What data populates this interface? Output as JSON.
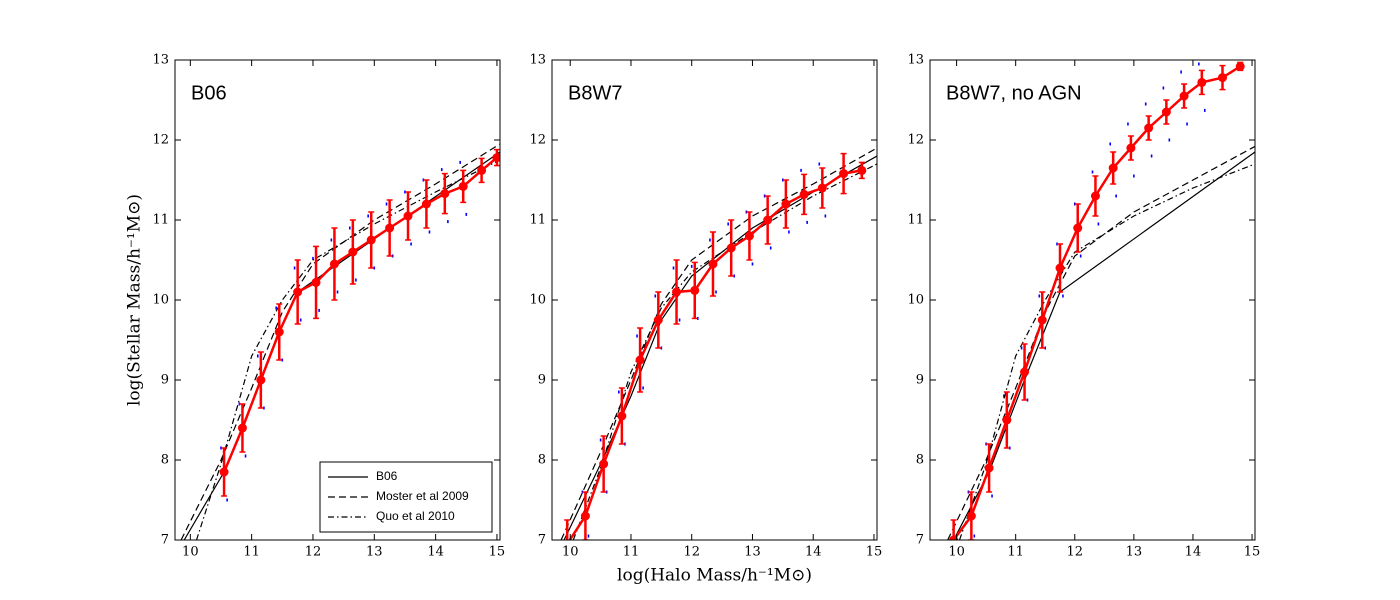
{
  "chart_data": [
    {
      "type": "line",
      "title": "B06",
      "y_label": "log(Stellar Mass/h⁻¹M⊙)",
      "xlim": [
        9.75,
        15.05
      ],
      "ylim": [
        7,
        13
      ],
      "xticks": [
        10,
        11,
        12,
        13,
        14,
        15
      ],
      "yticks": [
        7,
        8,
        9,
        10,
        11,
        12,
        13
      ],
      "legend": "lower right",
      "series": [
        {
          "color": "#0000ff",
          "marker": "dot",
          "x": [
            10.5,
            10.6,
            10.8,
            10.9,
            11.1,
            11.2,
            11.4,
            11.5,
            11.7,
            11.8,
            12.0,
            12.1,
            12.3,
            12.4,
            12.6,
            12.7,
            12.9,
            13.0,
            13.2,
            13.3,
            13.5,
            13.6,
            13.8,
            13.9,
            14.1,
            14.2,
            14.4,
            14.5
          ],
          "values": [
            8.15,
            7.5,
            8.7,
            8.05,
            9.3,
            8.65,
            9.9,
            9.25,
            10.4,
            9.75,
            10.52,
            9.87,
            10.75,
            10.1,
            10.9,
            10.25,
            11.05,
            10.4,
            11.2,
            10.55,
            11.35,
            10.7,
            11.5,
            10.85,
            11.63,
            10.98,
            11.72,
            11.07
          ]
        },
        {
          "name": "B06",
          "color": "#000000",
          "linestyle": "solid",
          "x": [
            9.9,
            10.55,
            10.85,
            11.15,
            11.45,
            11.75,
            15.05
          ],
          "values": [
            7,
            7.85,
            8.4,
            9.0,
            9.6,
            10.1,
            11.85
          ]
        },
        {
          "name": "Moster et al 2009",
          "color": "#000000",
          "linestyle": "dashed",
          "x": [
            9.85,
            10.5,
            11,
            11.5,
            12,
            13,
            14,
            15.05
          ],
          "values": [
            7,
            8.0,
            8.9,
            9.85,
            10.45,
            11.0,
            11.45,
            11.95
          ]
        },
        {
          "name": "Quo et al 2010",
          "color": "#000000",
          "linestyle": "dashdot",
          "x": [
            10.1,
            10.5,
            11,
            11.5,
            12,
            13,
            14,
            15.05
          ],
          "values": [
            7,
            7.95,
            9.3,
            10.0,
            10.5,
            10.95,
            11.35,
            11.75
          ]
        },
        {
          "color": "#ff0000",
          "linestyle": "solid",
          "marker": "o",
          "x": [
            10.55,
            10.85,
            11.15,
            11.45,
            11.75,
            12.05,
            12.35,
            12.65,
            12.95,
            13.25,
            13.55,
            13.85,
            14.15,
            14.45,
            14.75,
            15.0
          ],
          "values": [
            7.85,
            8.4,
            9.0,
            9.6,
            10.1,
            10.22,
            10.45,
            10.6,
            10.75,
            10.9,
            11.05,
            11.2,
            11.33,
            11.42,
            11.62,
            11.78
          ],
          "errors": [
            0.3,
            0.3,
            0.35,
            0.35,
            0.4,
            0.45,
            0.45,
            0.4,
            0.35,
            0.35,
            0.3,
            0.3,
            0.25,
            0.2,
            0.15,
            0.1
          ]
        }
      ]
    },
    {
      "type": "line",
      "title": "B8W7",
      "x_label": "log(Halo Mass/h⁻¹M⊙)",
      "xlim": [
        9.7,
        15.05
      ],
      "ylim": [
        7,
        13
      ],
      "xticks": [
        10,
        11,
        12,
        13,
        14,
        15
      ],
      "yticks": [
        7,
        8,
        9,
        10,
        11,
        12,
        13
      ],
      "series": [
        {
          "color": "#0000ff",
          "marker": "dot",
          "x": [
            10.2,
            10.3,
            10.5,
            10.6,
            10.8,
            10.9,
            11.1,
            11.2,
            11.4,
            11.5,
            11.7,
            11.8,
            12.0,
            12.1,
            12.3,
            12.4,
            12.6,
            12.7,
            12.9,
            13.0,
            13.2,
            13.3,
            13.5,
            13.6,
            13.8,
            13.9,
            14.1,
            14.2
          ],
          "values": [
            7.6,
            7.05,
            8.25,
            7.6,
            8.85,
            8.2,
            9.55,
            8.9,
            10.05,
            9.4,
            10.4,
            9.75,
            10.42,
            9.77,
            10.75,
            10.1,
            10.95,
            10.3,
            11.1,
            10.45,
            11.3,
            10.65,
            11.5,
            10.85,
            11.62,
            10.97,
            11.7,
            11.05
          ]
        },
        {
          "color": "#000000",
          "linestyle": "solid",
          "x": [
            9.9,
            10.5,
            11,
            11.5,
            12,
            13,
            14,
            15.05
          ],
          "values": [
            7,
            7.95,
            8.8,
            9.75,
            10.3,
            10.9,
            11.35,
            11.8
          ]
        },
        {
          "color": "#000000",
          "linestyle": "dashed",
          "x": [
            9.85,
            10.5,
            11,
            11.5,
            12,
            13,
            14,
            15.05
          ],
          "values": [
            7,
            8.1,
            9.0,
            9.95,
            10.5,
            11.05,
            11.45,
            11.9
          ]
        },
        {
          "color": "#000000",
          "linestyle": "dashdot",
          "x": [
            10.05,
            10.5,
            11,
            11.5,
            12,
            13,
            14,
            15.05
          ],
          "values": [
            7,
            7.9,
            9.1,
            9.9,
            10.35,
            10.85,
            11.3,
            11.7
          ]
        },
        {
          "color": "#ff0000",
          "linestyle": "solid",
          "marker": "o",
          "x": [
            9.95,
            10.25,
            10.55,
            10.85,
            11.15,
            11.45,
            11.75,
            12.05,
            12.35,
            12.65,
            12.95,
            13.25,
            13.55,
            13.85,
            14.15,
            14.5,
            14.8
          ],
          "values": [
            6.95,
            7.3,
            7.95,
            8.55,
            9.25,
            9.75,
            10.1,
            10.12,
            10.45,
            10.65,
            10.8,
            11.0,
            11.2,
            11.32,
            11.4,
            11.58,
            11.62
          ],
          "errors": [
            0.3,
            0.3,
            0.35,
            0.35,
            0.4,
            0.35,
            0.4,
            0.35,
            0.4,
            0.35,
            0.3,
            0.3,
            0.3,
            0.25,
            0.25,
            0.25,
            0.1
          ]
        }
      ]
    },
    {
      "type": "line",
      "title": "B8W7, no AGN",
      "xlim": [
        9.55,
        15.05
      ],
      "ylim": [
        7,
        13
      ],
      "xticks": [
        10,
        11,
        12,
        13,
        14,
        15
      ],
      "yticks": [
        7,
        8,
        9,
        10,
        11,
        12,
        13
      ],
      "series": [
        {
          "color": "#0000ff",
          "marker": "dot",
          "x": [
            10.2,
            10.3,
            10.5,
            10.6,
            10.8,
            10.9,
            11.1,
            11.2,
            11.4,
            11.5,
            11.7,
            11.8,
            12.0,
            12.1,
            12.3,
            12.4,
            12.6,
            12.7,
            12.9,
            13.0,
            13.2,
            13.3,
            13.5,
            13.6,
            13.8,
            13.9,
            14.1,
            14.2
          ],
          "values": [
            7.6,
            7.05,
            8.2,
            7.55,
            8.8,
            8.15,
            9.4,
            8.75,
            10.05,
            9.4,
            10.7,
            10.05,
            11.2,
            10.55,
            11.6,
            10.95,
            11.95,
            11.3,
            12.2,
            11.55,
            12.45,
            11.8,
            12.65,
            12.0,
            12.85,
            12.2,
            12.95,
            12.37
          ]
        },
        {
          "color": "#000000",
          "linestyle": "solid",
          "x": [
            9.95,
            10.55,
            11.15,
            11.75,
            15.05
          ],
          "values": [
            7,
            7.85,
            9.0,
            10.1,
            11.85
          ]
        },
        {
          "color": "#000000",
          "linestyle": "dashed",
          "x": [
            9.85,
            10.5,
            11,
            11.5,
            12,
            13,
            14,
            15.05
          ],
          "values": [
            7,
            8.0,
            8.9,
            9.85,
            10.55,
            11.1,
            11.5,
            11.92
          ]
        },
        {
          "color": "#000000",
          "linestyle": "dashdot",
          "x": [
            10.05,
            10.5,
            11,
            11.5,
            12,
            13,
            14,
            15.05
          ],
          "values": [
            7,
            7.95,
            9.3,
            10.0,
            10.6,
            11.05,
            11.4,
            11.7
          ]
        },
        {
          "color": "#ff0000",
          "linestyle": "solid",
          "marker": "o",
          "x": [
            9.95,
            10.25,
            10.55,
            10.85,
            11.15,
            11.45,
            11.75,
            12.05,
            12.35,
            12.65,
            12.95,
            13.25,
            13.55,
            13.85,
            14.15,
            14.5,
            14.8
          ],
          "values": [
            7.0,
            7.3,
            7.9,
            8.5,
            9.1,
            9.75,
            10.4,
            10.9,
            11.3,
            11.65,
            11.9,
            12.15,
            12.35,
            12.55,
            12.72,
            12.78,
            12.92
          ],
          "errors": [
            0.25,
            0.3,
            0.3,
            0.35,
            0.35,
            0.35,
            0.3,
            0.3,
            0.25,
            0.2,
            0.15,
            0.15,
            0.15,
            0.15,
            0.15,
            0.15,
            0.05
          ]
        }
      ]
    }
  ]
}
